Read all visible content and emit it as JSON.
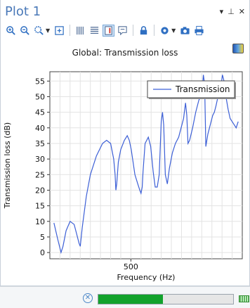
{
  "window": {
    "title": "Plot 1",
    "controls": [
      "pin-dropdown",
      "pin",
      "close"
    ]
  },
  "toolbar": {
    "buttons": [
      {
        "name": "zoom-in-icon"
      },
      {
        "name": "zoom-out-icon"
      },
      {
        "name": "zoom-box-icon",
        "dropdown": true
      },
      {
        "name": "zoom-extents-icon"
      },
      {
        "name": "grid-lines-icon"
      },
      {
        "name": "grid-rows-icon"
      },
      {
        "name": "legend-toggle-icon",
        "active": true
      },
      {
        "name": "annotation-icon"
      },
      {
        "name": "lock-icon"
      },
      {
        "name": "plot-settings-icon",
        "dropdown": true
      },
      {
        "name": "camera-icon"
      },
      {
        "name": "print-icon"
      }
    ]
  },
  "plot": {
    "title": "Global: Transmission loss"
  },
  "chart_data": {
    "type": "line",
    "title": "Global: Transmission loss",
    "xlabel": "Frequency (Hz)",
    "ylabel": "Transmission loss (dB)",
    "xlim": [
      100,
      1050
    ],
    "ylim": [
      -2,
      58
    ],
    "x_ticks": [
      500
    ],
    "y_ticks": [
      0,
      5,
      10,
      15,
      20,
      25,
      30,
      35,
      40,
      45,
      50,
      55
    ],
    "grid": true,
    "legend_position": "top-right",
    "series": [
      {
        "name": "Transmission",
        "color": "#3c5fd6",
        "x": [
          120,
          140,
          155,
          165,
          180,
          200,
          220,
          232,
          244,
          250,
          260,
          280,
          300,
          330,
          360,
          380,
          400,
          415,
          422,
          426,
          430,
          438,
          450,
          468,
          482,
          492,
          502,
          520,
          534,
          544,
          550,
          556,
          560,
          570,
          586,
          598,
          610,
          620,
          630,
          640,
          650,
          656,
          662,
          670,
          680,
          690,
          705,
          720,
          736,
          748,
          760,
          770,
          776,
          782,
          790,
          805,
          820,
          836,
          850,
          858,
          864,
          870,
          880,
          888,
          896,
          904,
          912,
          920,
          930,
          940,
          948,
          952,
          956,
          960,
          965,
          972,
          980,
          990,
          1000,
          1010,
          1020,
          1030
        ],
        "y": [
          9.5,
          4,
          0,
          2,
          7,
          10,
          9,
          6,
          3,
          2,
          8,
          18,
          25,
          31,
          35,
          36,
          35,
          30,
          25,
          20,
          22,
          29,
          33,
          36,
          37.5,
          36,
          33,
          25,
          22,
          20,
          19,
          21,
          26,
          35,
          37,
          34,
          26,
          21,
          21,
          25,
          42,
          45,
          41,
          25,
          22,
          27,
          32,
          35,
          37,
          40,
          43,
          48,
          44,
          35,
          36,
          40,
          45,
          49,
          50,
          57,
          54,
          34,
          38,
          40,
          42,
          44,
          45,
          47,
          50,
          52,
          55,
          57,
          56,
          55,
          52,
          49,
          46,
          43,
          42,
          41,
          40,
          42
        ]
      }
    ]
  },
  "status_bar": {
    "progress": 0.48
  }
}
